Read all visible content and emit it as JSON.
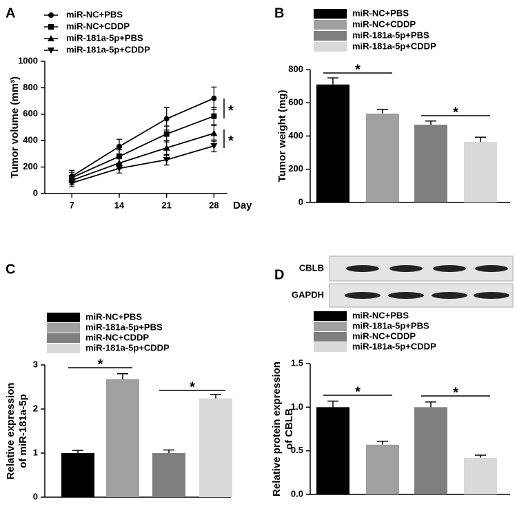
{
  "chart_data": [
    {
      "type": "line",
      "panel": "A",
      "ylabel": "Tumor volume (mm³)",
      "xlabel": "Day",
      "x": [
        7,
        14,
        21,
        28
      ],
      "xlim": [
        3,
        30
      ],
      "xticks": [
        7,
        14,
        21,
        28
      ],
      "ylim": [
        0,
        1000
      ],
      "yticks": [
        0,
        200,
        400,
        600,
        800,
        1000
      ],
      "series": [
        {
          "name": "miR-NC+PBS",
          "color": "#000000",
          "marker": "circle",
          "values": [
            130,
            355,
            565,
            720
          ],
          "errors": [
            45,
            55,
            85,
            85
          ]
        },
        {
          "name": "miR-NC+CDDP",
          "color": "#000000",
          "marker": "square",
          "values": [
            120,
            280,
            450,
            585
          ],
          "errors": [
            40,
            50,
            60,
            65
          ]
        },
        {
          "name": "miR-181a-5p+PBS",
          "color": "#000000",
          "marker": "triangle-up",
          "values": [
            100,
            230,
            345,
            455
          ],
          "errors": [
            35,
            40,
            55,
            60
          ]
        },
        {
          "name": "miR-181a-5p+CDDP",
          "color": "#000000",
          "marker": "triangle-down",
          "values": [
            80,
            190,
            255,
            360
          ],
          "errors": [
            30,
            35,
            40,
            45
          ]
        }
      ],
      "annotations": [
        "*",
        "*"
      ]
    },
    {
      "type": "bar",
      "panel": "B",
      "ylabel": "Tumor weight (mg)",
      "categories": [
        "miR-NC+PBS",
        "miR-NC+CDDP",
        "miR-181a-5p+PBS",
        "miR-181a-5p+CDDP"
      ],
      "values": [
        710,
        535,
        468,
        365
      ],
      "errors": [
        40,
        25,
        22,
        28
      ],
      "colors": [
        "#000000",
        "#a0a0a0",
        "#7f7f7f",
        "#d9d9d9"
      ],
      "ylim": [
        0,
        800
      ],
      "yticks": [
        0,
        200,
        400,
        600,
        800
      ],
      "annotations": [
        "*",
        "*"
      ]
    },
    {
      "type": "bar",
      "panel": "C",
      "ylabel": [
        "Relative expression",
        "of miR-181a-5p"
      ],
      "categories": [
        "miR-NC+PBS",
        "miR-181a-5p+PBS",
        "miR-NC+CDDP",
        "miR-181a-5p+CDDP"
      ],
      "values": [
        1.0,
        2.68,
        1.0,
        2.24
      ],
      "errors": [
        0.06,
        0.12,
        0.07,
        0.09
      ],
      "colors": [
        "#000000",
        "#a0a0a0",
        "#7f7f7f",
        "#d9d9d9"
      ],
      "ylim": [
        0,
        3
      ],
      "yticks": [
        0,
        1,
        2,
        3
      ],
      "annotations": [
        "*",
        "*"
      ]
    },
    {
      "type": "bar",
      "panel": "D",
      "ylabel": [
        "Relative protein expression",
        "of CBLB"
      ],
      "blot": [
        "CBLB",
        "GAPDH"
      ],
      "categories": [
        "miR-NC+PBS",
        "miR-181a-5p+PBS",
        "miR-NC+CDDP",
        "miR-181a-5p+CDDP"
      ],
      "values": [
        1.0,
        0.57,
        1.0,
        0.42
      ],
      "errors": [
        0.07,
        0.04,
        0.06,
        0.03
      ],
      "colors": [
        "#000000",
        "#a0a0a0",
        "#7f7f7f",
        "#d9d9d9"
      ],
      "ylim": [
        0,
        1.5
      ],
      "yticks": [
        {
          "value": 0,
          "label": "0.0"
        },
        {
          "value": 0.5,
          "label": "0.5"
        },
        {
          "value": 1,
          "label": "1.0"
        },
        {
          "value": 1.5,
          "label": "1.5"
        }
      ],
      "annotations": [
        "*",
        "*"
      ]
    }
  ]
}
